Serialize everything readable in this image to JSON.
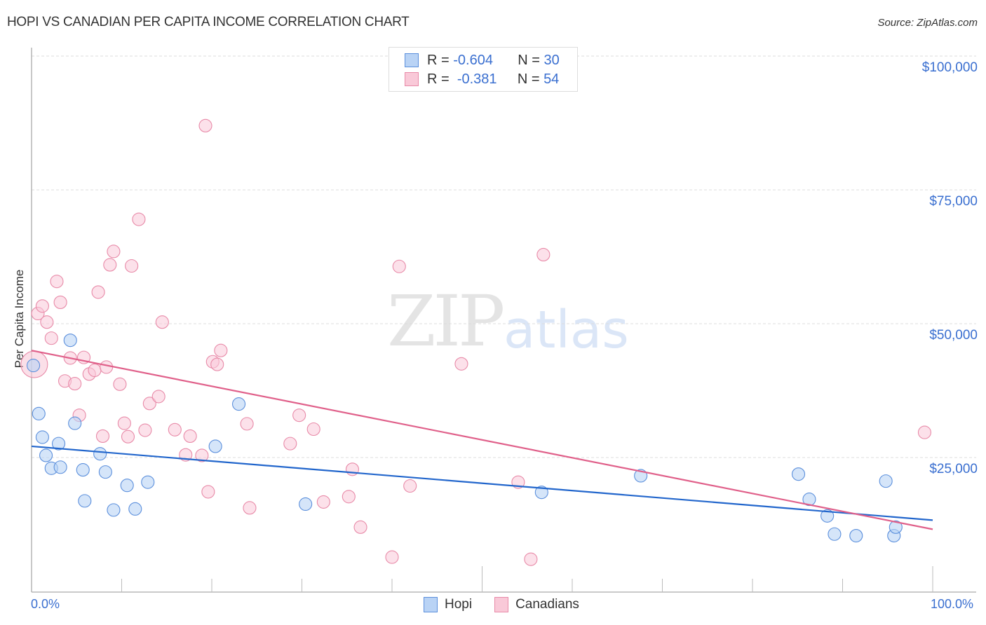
{
  "header": {
    "title": "HOPI VS CANADIAN PER CAPITA INCOME CORRELATION CHART",
    "source": "Source: ZipAtlas.com"
  },
  "legend": {
    "hopi": {
      "r_label": "R =",
      "r_value": "-0.604",
      "n_label": "N =",
      "n_value": "30"
    },
    "canadians": {
      "r_label": "R =",
      "r_value": "-0.381",
      "n_label": "N =",
      "n_value": "54"
    }
  },
  "axes": {
    "y_label": "Per Capita Income",
    "y_ticks": [
      "$100,000",
      "$75,000",
      "$50,000",
      "$25,000"
    ],
    "x_min_label": "0.0%",
    "x_max_label": "100.0%"
  },
  "bottom_legend": {
    "hopi": "Hopi",
    "canadians": "Canadians"
  },
  "watermark": {
    "zip": "ZIP",
    "atlas": "atlas"
  },
  "colors": {
    "hopi_fill": "#b9d3f5",
    "hopi_stroke": "#5b8fdc",
    "hopi_line": "#2266cc",
    "canadians_fill": "#f9c9d8",
    "canadians_stroke": "#e88aa8",
    "canadians_line": "#e0608a",
    "tick_text": "#3a6fd0"
  },
  "chart_data": {
    "type": "scatter",
    "title": "HOPI VS CANADIAN PER CAPITA INCOME CORRELATION CHART",
    "xlabel": "",
    "ylabel": "Per Capita Income",
    "xlim": [
      0,
      100
    ],
    "ylim": [
      0,
      100000
    ],
    "x_unit": "%",
    "y_ticks": [
      25000,
      50000,
      75000,
      100000
    ],
    "grid": true,
    "legend_position": "top-center and bottom-center",
    "series": [
      {
        "name": "Hopi",
        "r": -0.604,
        "n": 30,
        "trend": {
          "x": [
            0,
            100
          ],
          "y": [
            27100,
            13300
          ]
        },
        "points": [
          [
            0.2,
            42200
          ],
          [
            0.8,
            33200
          ],
          [
            1.2,
            28800
          ],
          [
            1.6,
            25400
          ],
          [
            2.2,
            23000
          ],
          [
            3.0,
            27600
          ],
          [
            3.2,
            23200
          ],
          [
            4.3,
            46900
          ],
          [
            4.8,
            31400
          ],
          [
            5.7,
            22700
          ],
          [
            5.9,
            16900
          ],
          [
            7.6,
            25700
          ],
          [
            8.2,
            22300
          ],
          [
            9.1,
            15200
          ],
          [
            10.6,
            19800
          ],
          [
            11.5,
            15400
          ],
          [
            12.9,
            20400
          ],
          [
            20.4,
            27100
          ],
          [
            23.0,
            35000
          ],
          [
            30.4,
            16300
          ],
          [
            56.6,
            18500
          ],
          [
            67.6,
            21600
          ],
          [
            85.1,
            21900
          ],
          [
            86.3,
            17200
          ],
          [
            88.3,
            14100
          ],
          [
            89.1,
            10700
          ],
          [
            91.5,
            10400
          ],
          [
            94.8,
            20600
          ],
          [
            95.7,
            10400
          ],
          [
            95.9,
            12000
          ]
        ]
      },
      {
        "name": "Canadians",
        "r": -0.381,
        "n": 54,
        "trend": {
          "x": [
            0,
            100
          ],
          "y": [
            45000,
            11600
          ]
        },
        "points": [
          [
            0.3,
            42400
          ],
          [
            0.7,
            51900
          ],
          [
            1.2,
            53300
          ],
          [
            1.7,
            50300
          ],
          [
            2.2,
            47300
          ],
          [
            2.8,
            57900
          ],
          [
            3.2,
            54000
          ],
          [
            3.7,
            39300
          ],
          [
            4.3,
            43600
          ],
          [
            4.8,
            38800
          ],
          [
            5.3,
            32900
          ],
          [
            5.8,
            43700
          ],
          [
            6.4,
            40600
          ],
          [
            7.0,
            41300
          ],
          [
            7.4,
            55900
          ],
          [
            7.9,
            29000
          ],
          [
            8.3,
            41900
          ],
          [
            8.7,
            61000
          ],
          [
            9.1,
            63500
          ],
          [
            9.8,
            38700
          ],
          [
            10.3,
            31400
          ],
          [
            10.7,
            28900
          ],
          [
            11.1,
            60800
          ],
          [
            11.9,
            69500
          ],
          [
            12.6,
            30100
          ],
          [
            13.1,
            35100
          ],
          [
            14.1,
            36400
          ],
          [
            14.5,
            50300
          ],
          [
            15.9,
            30200
          ],
          [
            17.1,
            25500
          ],
          [
            17.6,
            29000
          ],
          [
            18.9,
            25400
          ],
          [
            19.3,
            87000
          ],
          [
            19.6,
            18600
          ],
          [
            20.1,
            42900
          ],
          [
            20.6,
            42400
          ],
          [
            21.0,
            45000
          ],
          [
            23.9,
            31300
          ],
          [
            24.2,
            15600
          ],
          [
            28.7,
            27600
          ],
          [
            29.7,
            32900
          ],
          [
            31.3,
            30300
          ],
          [
            32.4,
            16700
          ],
          [
            35.2,
            17700
          ],
          [
            35.6,
            22800
          ],
          [
            36.5,
            12000
          ],
          [
            40.0,
            6400
          ],
          [
            40.8,
            60700
          ],
          [
            42.0,
            19700
          ],
          [
            47.7,
            42500
          ],
          [
            54.0,
            20400
          ],
          [
            55.4,
            6000
          ],
          [
            56.8,
            62900
          ],
          [
            99.1,
            29700
          ]
        ]
      }
    ]
  }
}
